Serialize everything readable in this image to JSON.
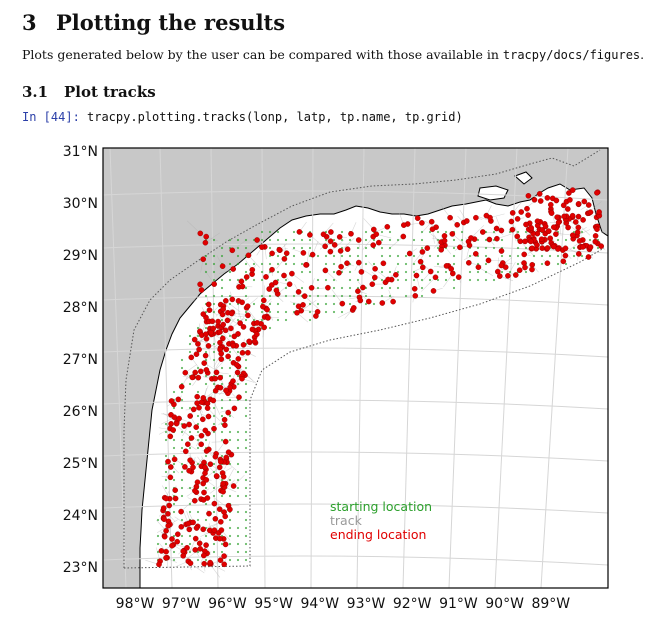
{
  "section": {
    "number": "3",
    "title": "Plotting the results"
  },
  "intro": {
    "text_before": "Plots generated below by the user can be compared with those available in ",
    "path": "tracpy/docs/figures",
    "text_after": "."
  },
  "subsection": {
    "number": "3.1",
    "title": "Plot tracks"
  },
  "cell": {
    "prompt": "In [44]:",
    "code": "tracpy.plotting.tracks(lonp, latp, tp.name, tp.grid)"
  },
  "chart_data": {
    "type": "scatter",
    "y_ticks": [
      "31°N",
      "30°N",
      "29°N",
      "28°N",
      "27°N",
      "26°N",
      "25°N",
      "24°N",
      "23°N"
    ],
    "x_ticks": [
      "98°W",
      "97°W",
      "96°W",
      "95°W",
      "94°W",
      "93°W",
      "92°W",
      "91°W",
      "90°W",
      "89°W"
    ],
    "legend": [
      {
        "label": "starting location",
        "color": "#2ca02c"
      },
      {
        "label": "track",
        "color": "#9a9a9a"
      },
      {
        "label": "ending location",
        "color": "#e00000"
      }
    ],
    "colors": {
      "land": "#c8c8c8",
      "ocean": "#ffffff",
      "end_marker": "#e00000",
      "start_marker": "#2ca02c",
      "track": "#b0b0b0"
    }
  }
}
